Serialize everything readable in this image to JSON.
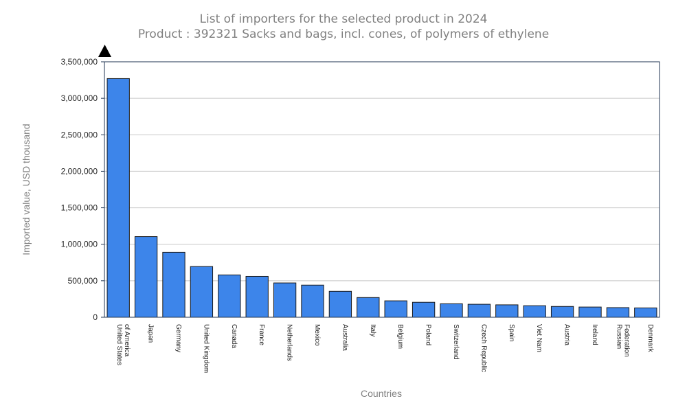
{
  "colors": {
    "bar": "#3d85ea",
    "bar_stroke": "#1a1a1a",
    "grid": "#c8c8c8",
    "frame": "#1f3350",
    "title": "#808080"
  },
  "chart_data": {
    "type": "bar",
    "title": "List of importers for the selected product in 2024",
    "subtitle": "Product : 392321 Sacks and bags, incl. cones, of polymers of ethylene",
    "xlabel": "Countries",
    "ylabel": "Imported value, USD thousand",
    "ylim": [
      0,
      3500000
    ],
    "yticks": [
      0,
      500000,
      1000000,
      1500000,
      2000000,
      2500000,
      3000000,
      3500000
    ],
    "ytick_labels": [
      "0",
      "500,000",
      "1,000,000",
      "1,500,000",
      "2,000,000",
      "2,500,000",
      "3,000,000",
      "3,500,000"
    ],
    "grid": true,
    "categories": [
      [
        "United States",
        "of America"
      ],
      [
        "Japan"
      ],
      [
        "Germany"
      ],
      [
        "United Kingdom"
      ],
      [
        "Canada"
      ],
      [
        "France"
      ],
      [
        "Netherlands"
      ],
      [
        "Mexico"
      ],
      [
        "Australia"
      ],
      [
        "Italy"
      ],
      [
        "Belgium"
      ],
      [
        "Poland"
      ],
      [
        "Switzerland"
      ],
      [
        "Czech Republic"
      ],
      [
        "Spain"
      ],
      [
        "Viet Nam"
      ],
      [
        "Austria"
      ],
      [
        "Ireland"
      ],
      [
        "Russian",
        "Federation"
      ],
      [
        "Denmark"
      ]
    ],
    "values": [
      3270000,
      1105000,
      890000,
      695000,
      580000,
      560000,
      470000,
      440000,
      355000,
      270000,
      225000,
      205000,
      185000,
      178000,
      170000,
      158000,
      148000,
      140000,
      132000,
      128000
    ]
  }
}
